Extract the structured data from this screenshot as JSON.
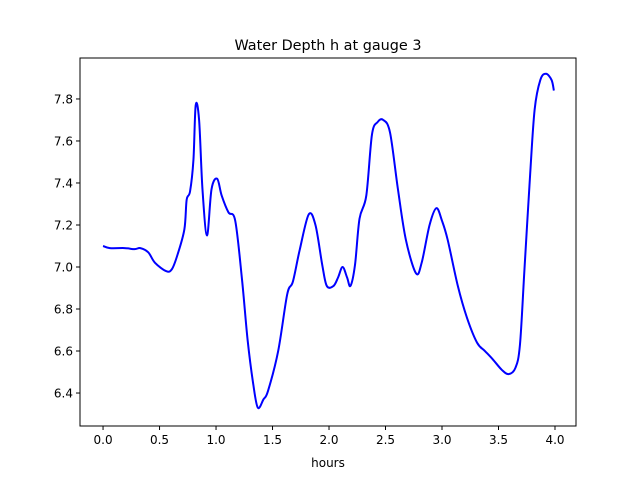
{
  "chart_data": {
    "type": "line",
    "title": "Water Depth h at gauge 3",
    "xlabel": "hours",
    "ylabel": "",
    "xlim": [
      -0.204,
      4.186
    ],
    "ylim": [
      6.243,
      7.995
    ],
    "xticks": [
      0.0,
      0.5,
      1.0,
      1.5,
      2.0,
      2.5,
      3.0,
      3.5,
      4.0
    ],
    "xtick_labels": [
      "0.0",
      "0.5",
      "1.0",
      "1.5",
      "2.0",
      "2.5",
      "3.0",
      "3.5",
      "4.0"
    ],
    "yticks": [
      6.4,
      6.6,
      6.8,
      7.0,
      7.2,
      7.4,
      7.6,
      7.8
    ],
    "ytick_labels": [
      "6.4",
      "6.6",
      "6.8",
      "7.0",
      "7.2",
      "7.4",
      "7.6",
      "7.8"
    ],
    "grid": false,
    "series": [
      {
        "name": "h",
        "color": "#0000ff",
        "x": [
          0,
          0.06,
          0.19,
          0.28,
          0.33,
          0.4,
          0.46,
          0.56,
          0.61,
          0.66,
          0.72,
          0.74,
          0.77,
          0.8,
          0.82,
          0.85,
          0.88,
          0.92,
          0.96,
          1.01,
          1.05,
          1.11,
          1.17,
          1.23,
          1.28,
          1.33,
          1.37,
          1.42,
          1.46,
          1.55,
          1.63,
          1.68,
          1.74,
          1.82,
          1.88,
          1.94,
          1.98,
          2.04,
          2.08,
          2.12,
          2.16,
          2.19,
          2.23,
          2.27,
          2.33,
          2.38,
          2.43,
          2.48,
          2.54,
          2.61,
          2.68,
          2.77,
          2.82,
          2.89,
          2.95,
          3.0,
          3.05,
          3.14,
          3.22,
          3.31,
          3.38,
          3.45,
          3.53,
          3.59,
          3.65,
          3.69,
          3.73,
          3.78,
          3.82,
          3.87,
          3.92,
          3.97,
          3.99
        ],
        "y": [
          7.1,
          7.09,
          7.09,
          7.085,
          7.09,
          7.07,
          7.02,
          6.98,
          6.99,
          7.06,
          7.18,
          7.32,
          7.36,
          7.51,
          7.77,
          7.7,
          7.37,
          7.15,
          7.37,
          7.42,
          7.34,
          7.26,
          7.22,
          6.94,
          6.65,
          6.44,
          6.33,
          6.37,
          6.41,
          6.6,
          6.87,
          6.93,
          7.08,
          7.25,
          7.2,
          7.01,
          6.91,
          6.91,
          6.95,
          7.0,
          6.95,
          6.91,
          7.01,
          7.23,
          7.34,
          7.63,
          7.69,
          7.7,
          7.64,
          7.37,
          7.13,
          6.97,
          7.02,
          7.2,
          7.28,
          7.22,
          7.13,
          6.91,
          6.76,
          6.64,
          6.6,
          6.56,
          6.51,
          6.49,
          6.52,
          6.63,
          6.99,
          7.44,
          7.75,
          7.89,
          7.92,
          7.89,
          7.84
        ]
      }
    ]
  }
}
